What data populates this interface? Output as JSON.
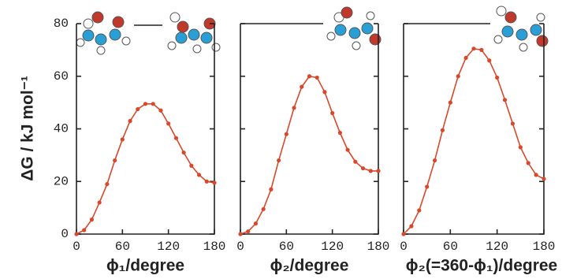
{
  "chart_data": [
    {
      "type": "line",
      "ylabel": "ΔG / kJ mol⁻¹",
      "xlabel": "ϕ₁/degree",
      "color": "#d9482b",
      "x": [
        0,
        10,
        20,
        30,
        40,
        50,
        60,
        70,
        80,
        90,
        100,
        110,
        120,
        130,
        140,
        150,
        160,
        170,
        180
      ],
      "values": [
        0,
        1.5,
        5.5,
        12,
        19,
        28,
        36,
        43,
        47.5,
        49.5,
        49.5,
        47,
        42,
        36.5,
        31,
        26,
        22.5,
        20,
        19.5
      ],
      "xlim": [
        0,
        180
      ],
      "xticks": [
        0,
        60,
        120,
        180
      ],
      "ylim": [
        0,
        80
      ],
      "yticks": [
        0,
        20,
        40,
        60,
        80
      ]
    },
    {
      "type": "line",
      "xlabel": "ϕ₂/degree",
      "color": "#d9482b",
      "x": [
        0,
        10,
        20,
        30,
        40,
        50,
        60,
        70,
        80,
        90,
        100,
        110,
        120,
        130,
        140,
        150,
        160,
        170,
        180
      ],
      "values": [
        0,
        1,
        4,
        9.5,
        17,
        28,
        38,
        48,
        56,
        60,
        59.5,
        54,
        46,
        38.5,
        32,
        27.5,
        25,
        24,
        24
      ],
      "xlim": [
        0,
        180
      ],
      "xticks": [
        0,
        60,
        120,
        180
      ],
      "ylim": [
        0,
        80
      ]
    },
    {
      "type": "line",
      "xlabel": "ϕ₂(=360-ϕ₁)/degree",
      "color": "#d9482b",
      "x": [
        0,
        10,
        20,
        30,
        40,
        50,
        60,
        70,
        80,
        90,
        100,
        110,
        120,
        130,
        140,
        150,
        160,
        170,
        180
      ],
      "values": [
        0,
        3,
        9,
        18,
        28,
        39.5,
        50,
        60,
        67,
        70.5,
        70,
        66,
        59.5,
        51,
        42,
        33,
        27,
        22.5,
        21
      ],
      "xlim": [
        0,
        180
      ],
      "xticks": [
        0,
        60,
        120,
        180
      ],
      "ylim": [
        0,
        80
      ]
    }
  ]
}
